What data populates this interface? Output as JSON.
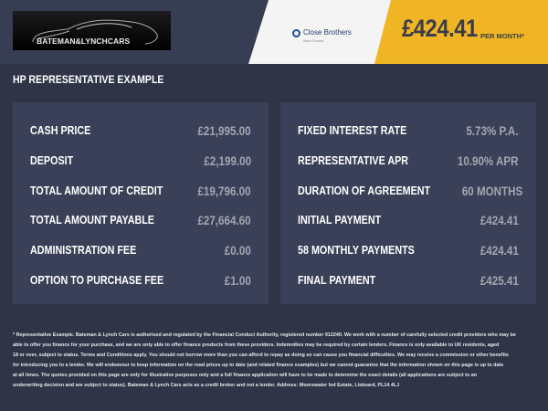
{
  "header": {
    "logo_text": "BATEMAN&LYNCHCARS",
    "lender_name": "Close Brothers",
    "lender_sub": "Motor Finance",
    "monthly_price": "£424.41",
    "per_month": "PER MONTH*"
  },
  "title": "HP REPRESENTATIVE EXAMPLE",
  "left": [
    {
      "label": "CASH PRICE",
      "value": "£21,995.00"
    },
    {
      "label": "DEPOSIT",
      "value": "£2,199.00"
    },
    {
      "label": "TOTAL AMOUNT OF CREDIT",
      "value": "£19,796.00"
    },
    {
      "label": "TOTAL AMOUNT PAYABLE",
      "value": "£27,664.60"
    },
    {
      "label": "ADMINISTRATION FEE",
      "value": "£0.00"
    },
    {
      "label": "OPTION TO PURCHASE FEE",
      "value": "£1.00"
    }
  ],
  "right": [
    {
      "label": "FIXED INTEREST RATE",
      "value": "5.73% P.A."
    },
    {
      "label": "REPRESENTATIVE APR",
      "value": "10.90% APR"
    },
    {
      "label": "DURATION OF AGREEMENT",
      "value": "60 MONTHS"
    },
    {
      "label": "INITIAL PAYMENT",
      "value": "£424.41"
    },
    {
      "label": "58 MONTHLY PAYMENTS",
      "value": "£424.41"
    },
    {
      "label": "FINAL PAYMENT",
      "value": "£425.41"
    }
  ],
  "disclaimer": [
    "* Representative Example. Bateman & Lynch Cars is authorised and regulated by the Financial Conduct Authority, registered number 912240. We work with a number of carefully selected credit providers who may be",
    "able to offer you finance for your purchase, and we are only able to offer finance products from these providers. Indemnities may be required by certain lenders. Finance is only available to UK residents, aged",
    "18 or over, subject to status. Terms and Conditions apply. You should not borrow more than you can afford to repay as doing so can cause you financial difficulties. We may receive a commission or other benefits",
    "for introducing you to a lender. We will endeavour to keep information on the road prices up to date (and related finance examples) but we cannot guarantee that the information shown on this page is up to date",
    "at all times. The quotes provided on this page are only for illustrative purposes only and a full finance application will have to be made to determine the exact details (all applications are subject to an",
    "underwriting decision and are subject to status). Bateman & Lynch Cars acts as a credit broker and not a lender. Address: Moorswater Ind Estate, Liskeard, PL14 4LJ"
  ]
}
